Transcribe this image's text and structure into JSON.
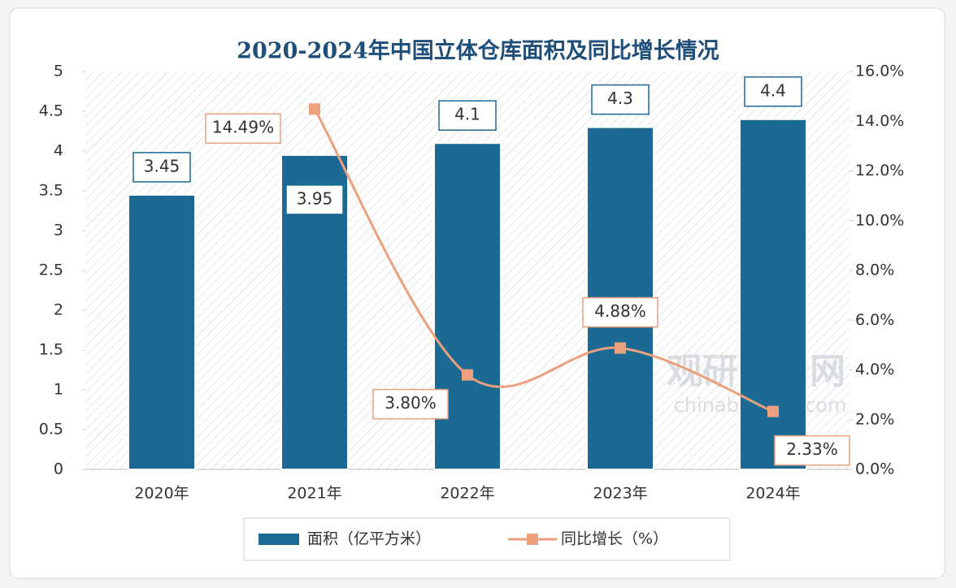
{
  "chart_data": {
    "type": "bar+line",
    "title": "2020-2024年中国立体仓库面积及同比增长情况",
    "categories": [
      "2020年",
      "2021年",
      "2022年",
      "2023年",
      "2024年"
    ],
    "series": [
      {
        "name": "面积（亿平方米）",
        "type": "bar",
        "color": "#1b6a93",
        "values": [
          3.45,
          3.95,
          4.1,
          4.3,
          4.4
        ]
      },
      {
        "name": "同比增长（%）",
        "type": "line",
        "axis": "y2",
        "color": "#eda07e",
        "values": [
          null,
          14.49,
          3.8,
          4.88,
          2.33
        ],
        "value_labels": [
          null,
          "14.49%",
          "3.80%",
          "4.88%",
          "2.33%"
        ]
      }
    ],
    "ylim": [
      0,
      5
    ],
    "yticks": [
      0,
      0.5,
      1,
      1.5,
      2,
      2.5,
      3,
      3.5,
      4,
      4.5,
      5
    ],
    "y2lim": [
      0,
      16
    ],
    "y2ticks": [
      {
        "value": 0,
        "label": "0.0%"
      },
      {
        "value": 2,
        "label": "2.0%"
      },
      {
        "value": 4,
        "label": "4.0%"
      },
      {
        "value": 6,
        "label": "6.0%"
      },
      {
        "value": 8,
        "label": "8.0%"
      },
      {
        "value": 10,
        "label": "10.0%"
      },
      {
        "value": 12,
        "label": "12.0%"
      },
      {
        "value": 14,
        "label": "14.0%"
      },
      {
        "value": 16,
        "label": "16.0%"
      }
    ],
    "legend": "bottom",
    "watermark": [
      "观研报告网",
      "chinabaogao.com"
    ]
  }
}
